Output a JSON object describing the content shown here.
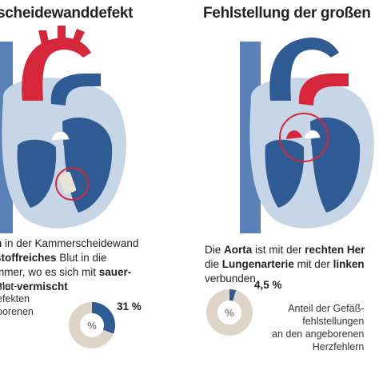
{
  "left": {
    "title": "scheidewanddefekt",
    "desc_lines": [
      [
        {
          "t": "h",
          "b": true
        },
        {
          "t": " in der Kammerscheidewand",
          "b": false
        }
      ],
      [
        {
          "t": "stoffreiches",
          "b": true
        },
        {
          "t": " Blut in die",
          "b": false
        }
      ],
      [
        {
          "t": "mmer, wo es sich mit ",
          "b": false
        },
        {
          "t": "sauer-",
          "b": true
        }
      ],
      [
        {
          "t": "Blut ",
          "b": false
        },
        {
          "t": "vermischt",
          "b": true
        }
      ]
    ],
    "stat_lines": [
      "mer-",
      "efekten",
      "oorenen"
    ],
    "percent": "31 %",
    "percent_value": 31,
    "donut_symbol": "%"
  },
  "right": {
    "title": "Fehlstellung der großen",
    "desc_lines": [
      [
        {
          "t": "Die ",
          "b": false
        },
        {
          "t": "Aorta",
          "b": true
        },
        {
          "t": " ist mit der ",
          "b": false
        },
        {
          "t": "rechten Her",
          "b": true
        }
      ],
      [
        {
          "t": "die ",
          "b": false
        },
        {
          "t": "Lungenarterie",
          "b": true
        },
        {
          "t": " mit der ",
          "b": false
        },
        {
          "t": "linken",
          "b": true
        }
      ],
      [
        {
          "t": "verbunden",
          "b": false
        }
      ]
    ],
    "stat_lines": [
      "Anteil der Gefäß-",
      "fehlstellungen",
      "an den angeborenen",
      "Herzfehlern"
    ],
    "percent": "4,5 %",
    "percent_value": 4.5,
    "donut_symbol": "%"
  },
  "colors": {
    "arterial_red": "#d6263a",
    "venous_blue": "#2e5b94",
    "vena_blue": "#5a82b8",
    "muscle": "#c7d6e6",
    "highlight": "#d6263a",
    "donut_bg": "#ddd6c8",
    "donut_fg": "#2e5b94"
  }
}
